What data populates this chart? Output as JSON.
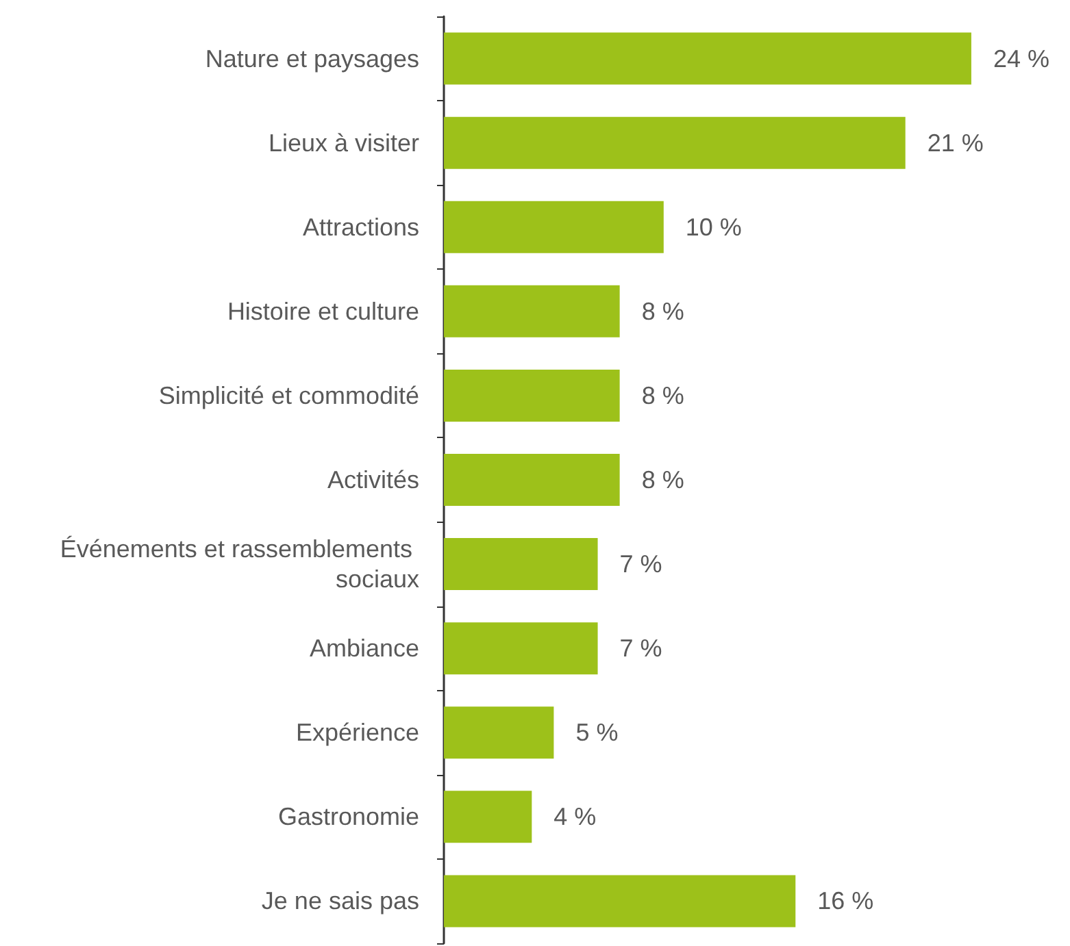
{
  "chart_data": {
    "type": "bar",
    "orientation": "horizontal",
    "categories": [
      "Nature et paysages",
      "Lieux à visiter",
      "Attractions",
      "Histoire et culture",
      "Simplicité et commodité",
      "Activités",
      "Événements et rassemblements sociaux",
      "Ambiance",
      "Expérience",
      "Gastronomie",
      "Je ne sais pas"
    ],
    "values": [
      24,
      21,
      10,
      8,
      8,
      8,
      7,
      7,
      5,
      4,
      16
    ],
    "value_labels": [
      "24 %",
      "21 %",
      "10 %",
      "8 %",
      "8 %",
      "8 %",
      "7 %",
      "7 %",
      "5 %",
      "4 %",
      "16 %"
    ],
    "color": "#9dc11a"
  }
}
